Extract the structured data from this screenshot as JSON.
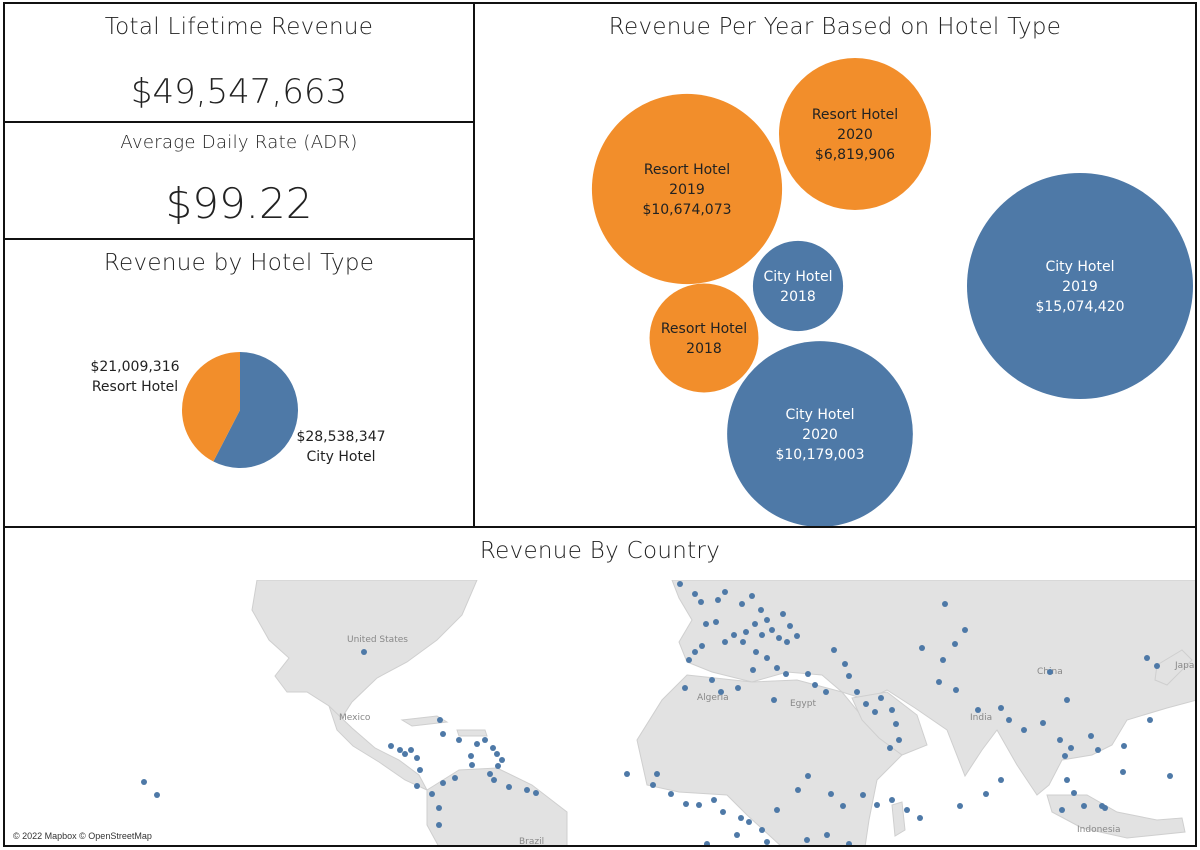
{
  "kpis": {
    "total_revenue": {
      "title": "Total Lifetime Revenue",
      "value": "$49,547,663"
    },
    "adr": {
      "title": "Average Daily Rate (ADR)",
      "value": "$99.22"
    }
  },
  "colors": {
    "resort": "#f28e2b",
    "city": "#4e79a7",
    "land": "#e2e2e2",
    "water": "#ffffff",
    "dot": "#4e79a7"
  },
  "chart_data": [
    {
      "type": "pie",
      "title": "Revenue by Hotel Type",
      "slices": [
        {
          "name": "Resort Hotel",
          "label": "$21,009,316",
          "value": 21009316,
          "color": "#f28e2b"
        },
        {
          "name": "City Hotel",
          "label": "$28,538,347",
          "value": 28538347,
          "color": "#4e79a7"
        }
      ]
    },
    {
      "type": "bubble",
      "title": "Revenue Per Year Based on Hotel Type",
      "bubbles": [
        {
          "hotel": "Resort Hotel",
          "year": "2019",
          "label": "$10,674,073",
          "value": 10674073,
          "color": "#f28e2b"
        },
        {
          "hotel": "Resort Hotel",
          "year": "2020",
          "label": "$6,819,906",
          "value": 6819906,
          "color": "#f28e2b"
        },
        {
          "hotel": "City Hotel",
          "year": "2018",
          "label": "",
          "value": 2400000,
          "color": "#4e79a7"
        },
        {
          "hotel": "City Hotel",
          "year": "2019",
          "label": "$15,074,420",
          "value": 15074420,
          "color": "#4e79a7"
        },
        {
          "hotel": "Resort Hotel",
          "year": "2018",
          "label": "",
          "value": 3500000,
          "color": "#f28e2b"
        },
        {
          "hotel": "City Hotel",
          "year": "2020",
          "label": "$10,179,003",
          "value": 10179003,
          "color": "#4e79a7"
        }
      ]
    },
    {
      "type": "map",
      "title": "Revenue By Country",
      "place_labels": [
        "United States",
        "Mexico",
        "Algeria",
        "Egypt",
        "India",
        "China",
        "Japan",
        "Indonesia",
        "Brazil"
      ],
      "attribution": "© 2022 Mapbox © OpenStreetMap"
    }
  ]
}
